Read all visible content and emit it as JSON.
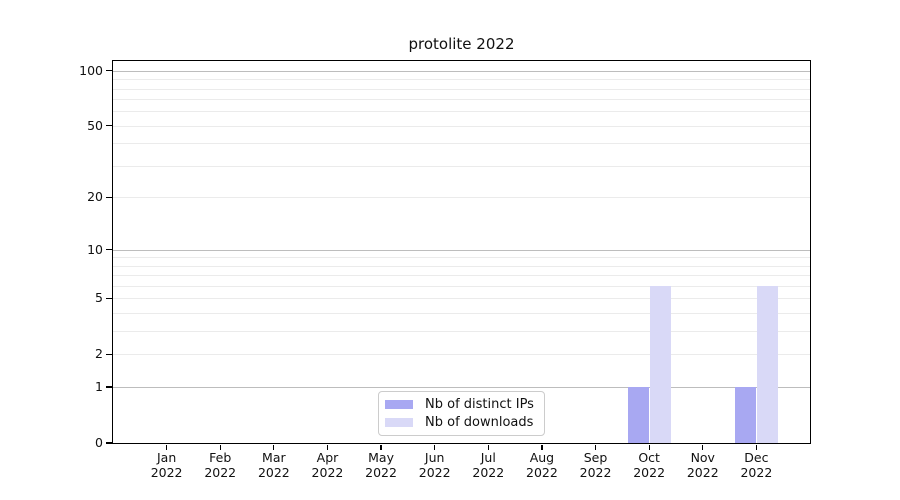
{
  "chart_data": {
    "type": "bar",
    "title": "protolite 2022",
    "categories": [
      "Jan 2022",
      "Feb 2022",
      "Mar 2022",
      "Apr 2022",
      "May 2022",
      "Jun 2022",
      "Jul 2022",
      "Aug 2022",
      "Sep 2022",
      "Oct 2022",
      "Nov 2022",
      "Dec 2022"
    ],
    "series": [
      {
        "name": "Nb of distinct IPs",
        "color": "#a8a8f2",
        "values": [
          0,
          0,
          0,
          0,
          0,
          0,
          0,
          0,
          0,
          1,
          0,
          1
        ]
      },
      {
        "name": "Nb of downloads",
        "color": "#d9d9f7",
        "values": [
          0,
          0,
          0,
          0,
          0,
          0,
          0,
          0,
          0,
          6,
          0,
          6
        ]
      }
    ],
    "xlabel": "",
    "ylabel": "",
    "yscale": "log1p",
    "yticks": [
      0,
      1,
      2,
      5,
      10,
      20,
      50,
      100
    ],
    "minor_gridlines": [
      2,
      3,
      4,
      5,
      6,
      7,
      8,
      9,
      20,
      30,
      40,
      50,
      60,
      70,
      80,
      90
    ],
    "major_gridlines": [
      1,
      10,
      100
    ],
    "ylim": [
      0,
      113
    ],
    "grid": "horizontal",
    "legend_position": "lower center inside"
  },
  "colors": {
    "background": "#ffffff",
    "axis": "#000000",
    "grid_minor": "#ebebeb",
    "grid_major": "#bdbdbd",
    "legend_border": "#cccccc",
    "bar_distinct_ips": "#a8a8f2",
    "bar_downloads": "#d9d9f7"
  }
}
